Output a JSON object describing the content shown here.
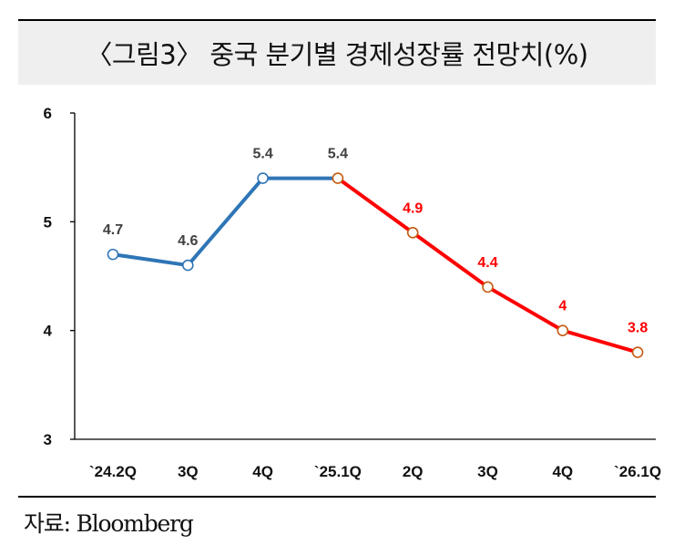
{
  "header": {
    "title": "〈그림3〉 중국 분기별 경제성장률 전망치(%)"
  },
  "footer": {
    "source": "자료: Bloomberg"
  },
  "colors": {
    "actual": "#2e75b6",
    "forecast": "#ff0000",
    "actual_label": "#404040",
    "forecast_label": "#ff0000",
    "forecast_marker_stroke": "#c55a11"
  },
  "chart_data": {
    "type": "line",
    "categories": [
      "`24.2Q",
      "3Q",
      "4Q",
      "`25.1Q",
      "2Q",
      "3Q",
      "4Q",
      "`26.1Q"
    ],
    "series": [
      {
        "values": [
          4.7,
          4.6,
          5.4,
          5.4,
          null,
          null,
          null,
          null
        ]
      },
      {
        "values": [
          null,
          null,
          null,
          5.4,
          4.9,
          4.4,
          4.0,
          3.8
        ]
      }
    ],
    "data_labels": [
      "4.7",
      "4.6",
      "5.4",
      "5.4",
      "4.9",
      "4.4",
      "4",
      "3.8"
    ],
    "ylim": [
      3,
      6
    ],
    "yticks": [
      "3",
      "4",
      "5",
      "6"
    ],
    "grid": false,
    "legend": "none"
  }
}
